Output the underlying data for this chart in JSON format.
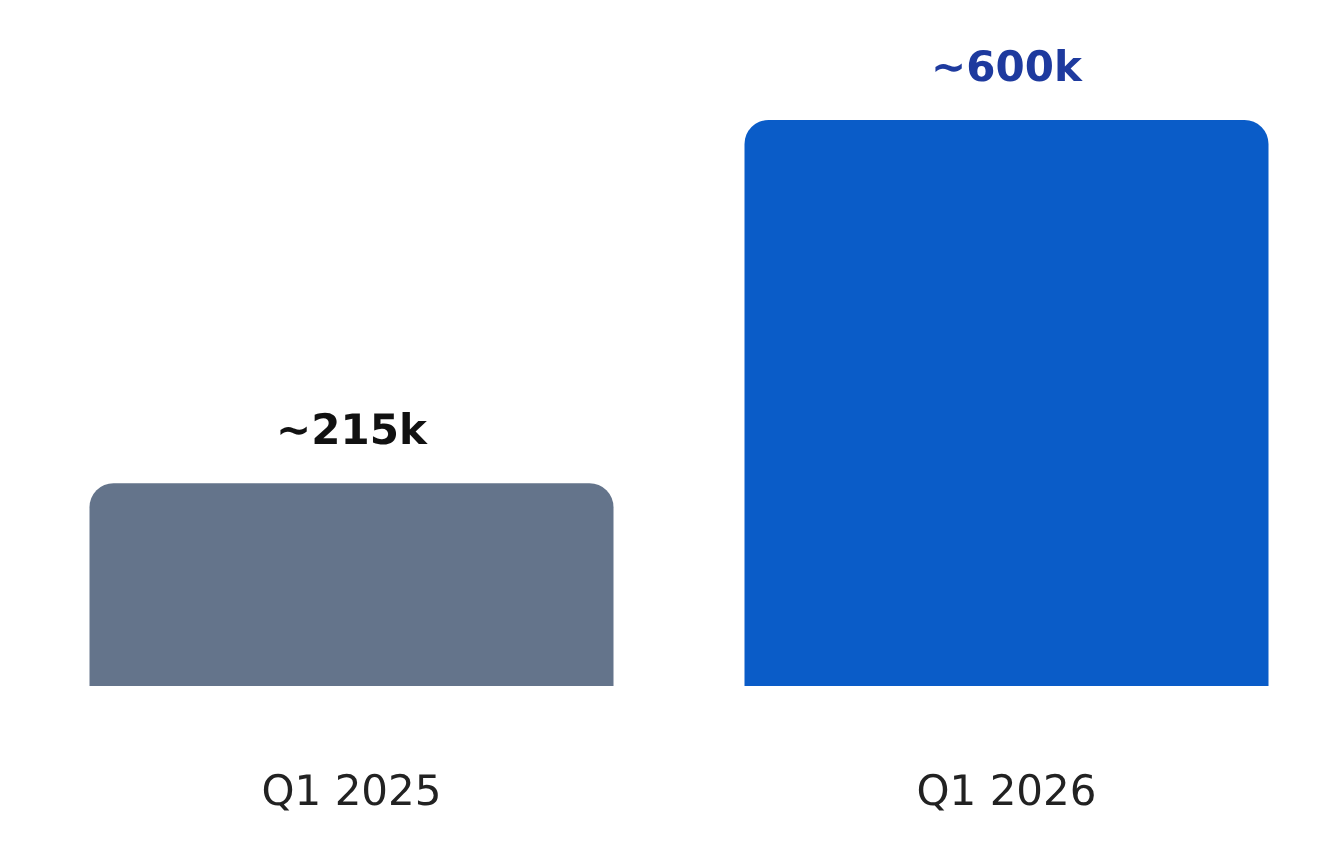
{
  "chart_data": {
    "type": "bar",
    "categories": [
      "Q1 2025",
      "Q1 2026"
    ],
    "values": [
      215000,
      600000
    ],
    "value_labels": [
      "~215k",
      "~600k"
    ],
    "colors": [
      "#64748b",
      "#0a5cc8"
    ]
  }
}
